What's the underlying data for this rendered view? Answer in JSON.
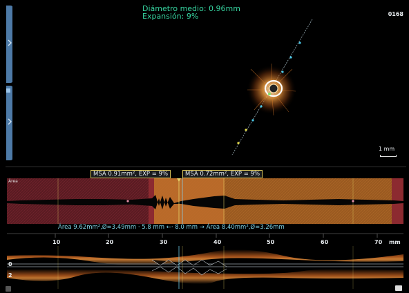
{
  "overlay": {
    "mean_diameter": "Diámetro medio:  0.96mm",
    "expansion": "Expansión: 9%",
    "frame_number": "0168",
    "scale_label": "1 mm"
  },
  "area_strip": {
    "label": "Área",
    "msa_left": "MSA 0.91mm², EXP = 9%",
    "msa_right": "MSA 0.72mm², EXP = 9%"
  },
  "measurement": {
    "text": "Área 9.62mm²,Ø=3.49mm · 5.8 mm ←· 8.0 mm → Área 8.40mm²,Ø=3.26mm"
  },
  "ruler": {
    "ticks": [
      "10",
      "20",
      "30",
      "40",
      "50",
      "60",
      "70"
    ],
    "unit_right": "mm",
    "unit_left": "mm",
    "depth_0": "0",
    "depth_2": "2"
  },
  "colors": {
    "accent_green": "#36d39f",
    "accent_cyan": "#7fd2e4",
    "stent_region": "#c9782a",
    "area_background": "#4a1a1f",
    "sidebar_tab": "#4d7aa7"
  },
  "icons": {
    "left_tab_top": "chevron-right-icon",
    "left_tab_bottom": "chevron-right-icon"
  }
}
